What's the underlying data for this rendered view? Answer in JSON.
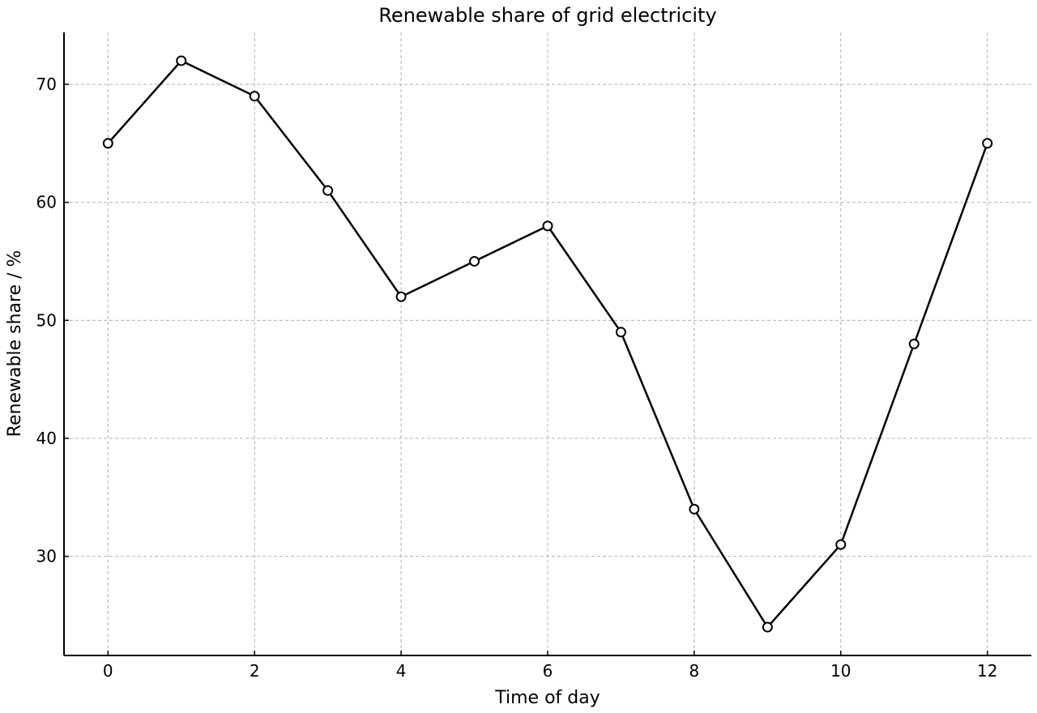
{
  "chart_data": {
    "type": "line",
    "title": "Renewable share of grid electricity",
    "xlabel": "Time of day",
    "ylabel": "Renewable share / %",
    "x": [
      0,
      1,
      2,
      3,
      4,
      5,
      6,
      7,
      8,
      9,
      10,
      11,
      12
    ],
    "series": [
      {
        "values": [
          65,
          72,
          69,
          61,
          52,
          55,
          58,
          49,
          34,
          24,
          31,
          48,
          65
        ]
      }
    ],
    "xlim": [
      -0.6,
      12.6
    ],
    "ylim": [
      21.6,
      74.4
    ],
    "xticks": [
      0,
      2,
      4,
      6,
      8,
      10,
      12
    ],
    "yticks": [
      30,
      40,
      50,
      60,
      70
    ],
    "grid": true,
    "line_color": "#000000",
    "marker_fill": "#ffffff",
    "grid_color": "#b0b0b0"
  }
}
